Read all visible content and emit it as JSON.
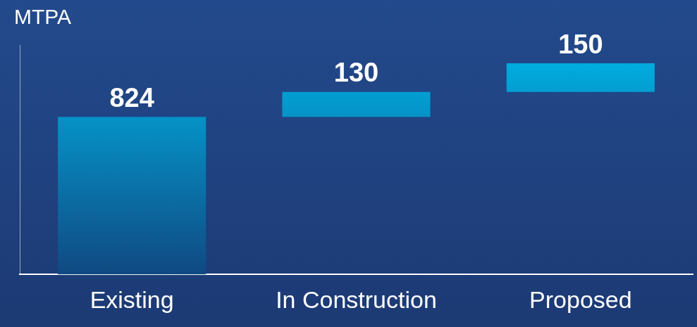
{
  "chart_data": {
    "type": "waterfall",
    "ylabel": "MTPA",
    "categories": [
      "Existing",
      "In Construction",
      "Proposed"
    ],
    "values": [
      824,
      130,
      150
    ],
    "color": "#00b4e6",
    "ylim": [
      0,
      1200
    ],
    "yticks": [],
    "tick_labels": "x",
    "data_labels": true,
    "grid": false
  }
}
